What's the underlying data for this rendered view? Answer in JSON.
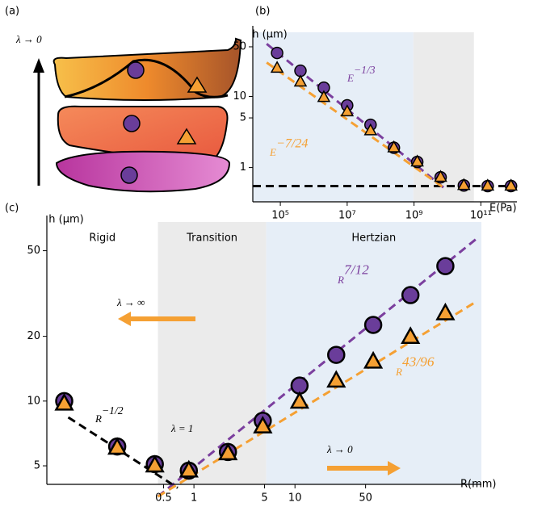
{
  "panel_labels": [
    "(a)",
    "(b)",
    "(c)"
  ],
  "illustration": {
    "arrow_label": "λ → 0"
  },
  "chart_data": [
    {
      "type": "scatter",
      "x_scale": "log",
      "y_scale": "log",
      "x_label": "E(Pa)",
      "y_label": "h (μm)",
      "xlim": [
        15000,
        1200000000000
      ],
      "ylim": [
        0.33,
        80
      ],
      "xticks": [
        {
          "value": 100000,
          "label": "10⁵"
        },
        {
          "value": 10000000,
          "label": "10⁷"
        },
        {
          "value": 1000000000,
          "label": "10⁹"
        },
        {
          "value": 100000000000,
          "label": "10¹¹"
        }
      ],
      "yticks": [
        1,
        5,
        10,
        50
      ],
      "regions": [
        {
          "from": 15000,
          "to": 960000000,
          "color": "#e6eef7"
        },
        {
          "from": 960000000,
          "to": 62000000000,
          "color": "#ebebeb"
        }
      ],
      "hline": {
        "value": 0.55,
        "color": "#000000"
      },
      "x": [
        80000,
        400000,
        2000000,
        10000000,
        50000000,
        250000000,
        1250000000,
        6250000000,
        31000000000,
        160000000000,
        800000000000
      ],
      "series": [
        {
          "marker": "circle",
          "color": "#6a3d9a",
          "values": [
            41,
            23,
            13.3,
            7.5,
            4.0,
            1.9,
            1.2,
            0.73,
            0.56,
            0.55,
            0.55
          ]
        },
        {
          "marker": "triangle",
          "color": "#f5a033",
          "values": [
            25,
            16,
            9.7,
            6.1,
            3.3,
            1.9,
            1.2,
            0.73,
            0.56,
            0.55,
            0.55
          ]
        }
      ],
      "fits": [
        {
          "color": "#7b3f9e",
          "x": [
            39000,
            7800000000
          ],
          "y": [
            55,
            0.52
          ]
        },
        {
          "color": "#f5a033",
          "x": [
            39000,
            7800000000
          ],
          "y": [
            30,
            0.52
          ]
        }
      ],
      "annotations": [
        {
          "text": "E",
          "sup": "−1/3",
          "color": "#7b3f9e"
        },
        {
          "text": "E",
          "sup": "−7/24",
          "color": "#f5a033"
        }
      ]
    },
    {
      "type": "scatter",
      "x_scale": "log",
      "y_scale": "log",
      "x_label": "R(mm)",
      "y_label": "h (μm)",
      "xlim": [
        0.035,
        700
      ],
      "ylim": [
        4.1,
        68
      ],
      "xticks": [
        0.5,
        1,
        5,
        10,
        50
      ],
      "yticks": [
        5,
        10,
        20,
        50
      ],
      "regions": [
        {
          "from": 0.035,
          "to": 0.44,
          "color": "#ffffff",
          "label": "Rigid"
        },
        {
          "from": 0.44,
          "to": 5.2,
          "color": "#ebebeb",
          "label": "Transition"
        },
        {
          "from": 5.2,
          "to": 700,
          "color": "#e6eef7",
          "label": "Hertzian"
        }
      ],
      "x": [
        0.052,
        0.174,
        0.41,
        0.89,
        2.17,
        4.8,
        11.1,
        25.6,
        59.5,
        139,
        308
      ],
      "series": [
        {
          "marker": "circle",
          "color": "#6a3d9a",
          "values": [
            10,
            6.15,
            5.09,
            4.75,
            5.8,
            8.1,
            11.8,
            16.4,
            22.6,
            31.1,
            42.4
          ]
        },
        {
          "marker": "triangle",
          "color": "#f5a033",
          "values": [
            9.7,
            6.05,
            5.0,
            4.74,
            5.7,
            7.6,
            9.9,
            12.4,
            15.2,
            19.8,
            25.5
          ]
        }
      ],
      "fits": [
        {
          "color": "#000000",
          "x": [
            0.057,
            0.69
          ],
          "y": [
            8.4,
            3.95
          ]
        },
        {
          "color": "#7b3f9e",
          "x": [
            0.44,
            631
          ],
          "y": [
            3.6,
            57
          ]
        },
        {
          "color": "#f5a033",
          "x": [
            0.44,
            631
          ],
          "y": [
            3.6,
            29.1
          ]
        }
      ],
      "annotations": [
        {
          "text": "R",
          "sup": "7/12",
          "color": "#7b3f9e"
        },
        {
          "text": "R",
          "sup": "43/96",
          "color": "#f5a033"
        },
        {
          "text": "R",
          "sup": "−1/2",
          "color": "#000000"
        },
        {
          "text": "λ = 1",
          "color": "#000000"
        },
        {
          "text": "λ → ∞",
          "color": "#000000"
        },
        {
          "text": "λ → 0",
          "color": "#000000"
        }
      ]
    }
  ]
}
